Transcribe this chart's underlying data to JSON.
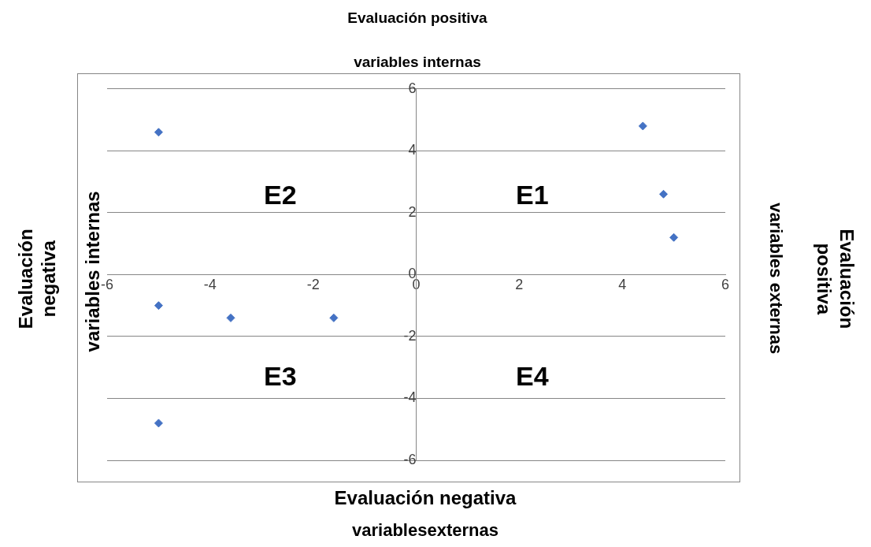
{
  "chart_data": {
    "type": "scatter",
    "title": "Evaluación positiva",
    "subtitle": "variables internas",
    "xlabel": "Evaluación negativa",
    "ylabel": "Evaluación negativa",
    "y2label": "Evaluación positiva",
    "annotations": [
      "variablesexternas",
      "variables internas",
      "variables externas",
      "E2",
      "E1",
      "E3",
      "E4"
    ],
    "series": [
      {
        "color": "#4472c4",
        "x": [
          -5,
          -5,
          -3.6,
          -1.6,
          -5,
          4.4,
          4.8,
          5
        ],
        "values": [
          4.6,
          -1,
          -1.4,
          -1.4,
          -4.8,
          4.8,
          2.6,
          1.2
        ]
      }
    ],
    "xlim": [
      -6,
      6
    ],
    "xticks": [
      -6,
      -4,
      -2,
      0,
      2,
      4,
      6
    ],
    "ylim": [
      -6,
      6
    ],
    "yticks": [
      -6,
      -4,
      -2,
      0,
      2,
      4,
      6
    ],
    "grid": "y",
    "legend": false,
    "marker": "diamond"
  }
}
